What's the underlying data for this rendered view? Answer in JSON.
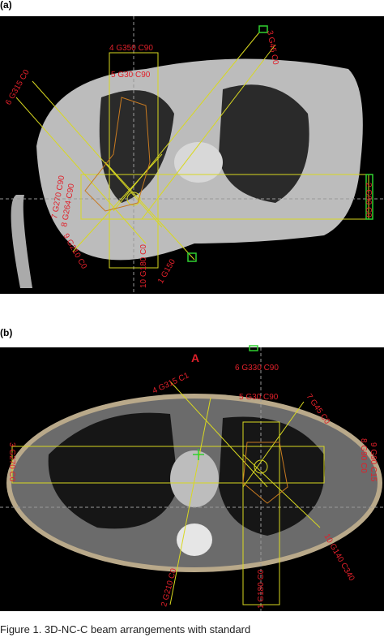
{
  "panels": [
    {
      "label": "(a)",
      "beams": [
        "4 G350 C90",
        "3 G45 C0",
        "5 G30 C90",
        "6 G315 C0",
        "7 G270 C90",
        "8 G264 C90",
        "9 G210 C0",
        "10 G180 C0",
        "1 G150",
        "2 G90 C0"
      ]
    },
    {
      "label": "(b)",
      "orientation": "A",
      "beams": [
        "6 G330 C90",
        "4 G315 C1",
        "5 G30 C90",
        "7 G45 C0",
        "3 G270 C0",
        "8 G90 C0",
        "9 G90 C15",
        "10 G140 C340",
        "2 G210 C0",
        "1 G180 C0"
      ]
    }
  ],
  "caption": "Figure 1. 3D-NC-C beam arrangements with standard"
}
